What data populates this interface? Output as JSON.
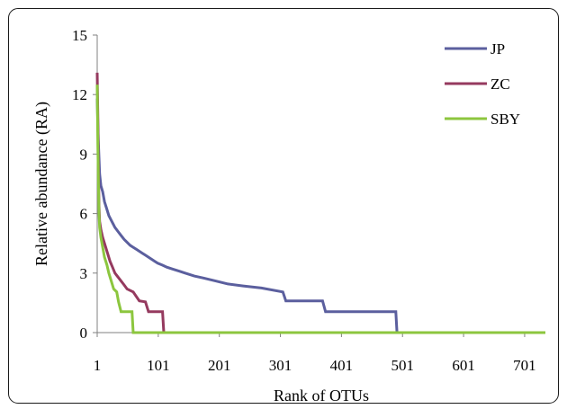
{
  "chart_data": {
    "type": "line",
    "xlabel": "Rank of OTUs",
    "ylabel": "Relative abundance (RA)",
    "xlim": [
      1,
      735
    ],
    "ylim": [
      0,
      15
    ],
    "x_ticks": [
      1,
      101,
      201,
      301,
      401,
      501,
      601,
      701
    ],
    "y_ticks": [
      0,
      3,
      6,
      9,
      12,
      15
    ],
    "grid": false,
    "legend_position": "top-right",
    "series": [
      {
        "name": "JP",
        "color": "#5b5f9e",
        "points": [
          [
            1,
            11.8
          ],
          [
            2,
            10.5
          ],
          [
            3,
            9.5
          ],
          [
            4,
            8.8
          ],
          [
            5,
            8.0
          ],
          [
            7,
            7.4
          ],
          [
            10,
            7.1
          ],
          [
            13,
            6.6
          ],
          [
            16,
            6.3
          ],
          [
            20,
            5.9
          ],
          [
            25,
            5.6
          ],
          [
            30,
            5.3
          ],
          [
            35,
            5.1
          ],
          [
            40,
            4.9
          ],
          [
            45,
            4.7
          ],
          [
            50,
            4.55
          ],
          [
            55,
            4.4
          ],
          [
            60,
            4.3
          ],
          [
            65,
            4.2
          ],
          [
            70,
            4.1
          ],
          [
            75,
            4.0
          ],
          [
            80,
            3.9
          ],
          [
            85,
            3.8
          ],
          [
            90,
            3.7
          ],
          [
            95,
            3.6
          ],
          [
            100,
            3.5
          ],
          [
            108,
            3.4
          ],
          [
            115,
            3.3
          ],
          [
            125,
            3.2
          ],
          [
            135,
            3.1
          ],
          [
            145,
            3.0
          ],
          [
            160,
            2.85
          ],
          [
            175,
            2.75
          ],
          [
            195,
            2.6
          ],
          [
            215,
            2.45
          ],
          [
            240,
            2.35
          ],
          [
            270,
            2.25
          ],
          [
            305,
            2.05
          ],
          [
            310,
            1.6
          ],
          [
            370,
            1.6
          ],
          [
            375,
            1.05
          ],
          [
            490,
            1.05
          ],
          [
            492,
            0
          ],
          [
            735,
            0
          ]
        ]
      },
      {
        "name": "ZC",
        "color": "#953a5f",
        "points": [
          [
            1,
            13.1
          ],
          [
            2,
            11.0
          ],
          [
            3,
            8.0
          ],
          [
            4,
            6.4
          ],
          [
            5,
            5.6
          ],
          [
            7,
            5.2
          ],
          [
            10,
            4.8
          ],
          [
            14,
            4.4
          ],
          [
            18,
            4.0
          ],
          [
            22,
            3.6
          ],
          [
            26,
            3.3
          ],
          [
            30,
            3.0
          ],
          [
            35,
            2.8
          ],
          [
            40,
            2.6
          ],
          [
            45,
            2.4
          ],
          [
            50,
            2.2
          ],
          [
            60,
            2.05
          ],
          [
            70,
            1.6
          ],
          [
            80,
            1.55
          ],
          [
            85,
            1.05
          ],
          [
            108,
            1.05
          ],
          [
            110,
            0
          ],
          [
            735,
            0
          ]
        ]
      },
      {
        "name": "SBY",
        "color": "#8cc63e",
        "points": [
          [
            1,
            12.5
          ],
          [
            2,
            9.5
          ],
          [
            3,
            7.5
          ],
          [
            4,
            6.0
          ],
          [
            5,
            5.3
          ],
          [
            7,
            4.8
          ],
          [
            10,
            4.3
          ],
          [
            13,
            3.8
          ],
          [
            17,
            3.4
          ],
          [
            20,
            3.0
          ],
          [
            24,
            2.6
          ],
          [
            28,
            2.2
          ],
          [
            33,
            2.05
          ],
          [
            36,
            1.55
          ],
          [
            40,
            1.05
          ],
          [
            58,
            1.05
          ],
          [
            60,
            0
          ],
          [
            735,
            0
          ]
        ]
      }
    ]
  }
}
